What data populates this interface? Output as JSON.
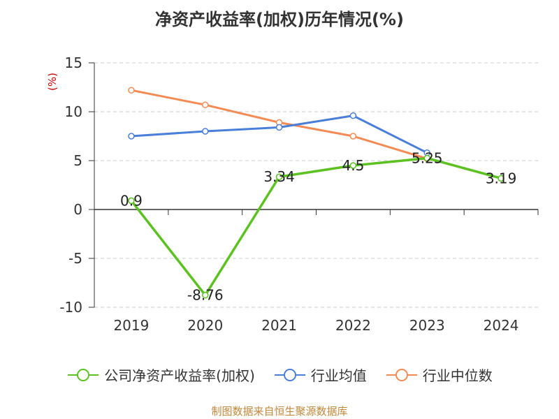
{
  "title": "净资产收益率(加权)历年情况(%)",
  "y_unit": "(%)",
  "source": "制图数据来自恒生聚源数据库",
  "chart_data": {
    "type": "line",
    "title": "净资产收益率(加权)历年情况(%)",
    "ylabel": "(%)",
    "categories": [
      "2019",
      "2020",
      "2021",
      "2022",
      "2023",
      "2024"
    ],
    "ylim": [
      -10,
      15
    ],
    "yticks": [
      -10,
      -5,
      0,
      5,
      10,
      15
    ],
    "grid": true,
    "legend_position": "bottom",
    "series": [
      {
        "name": "公司净资产收益率(加权)",
        "color": "#5cc221",
        "values": [
          0.9,
          -8.76,
          3.34,
          4.5,
          5.25,
          3.19
        ],
        "labels": [
          "0.9",
          "-8.76",
          "3.34",
          "4.5",
          "5.25",
          "3.19"
        ]
      },
      {
        "name": "行业均值",
        "color": "#4a7fd9",
        "values": [
          7.5,
          8.0,
          8.4,
          9.6,
          5.8,
          null
        ]
      },
      {
        "name": "行业中位数",
        "color": "#f48b55",
        "values": [
          12.2,
          10.7,
          8.9,
          7.5,
          5.2,
          null
        ]
      }
    ]
  }
}
